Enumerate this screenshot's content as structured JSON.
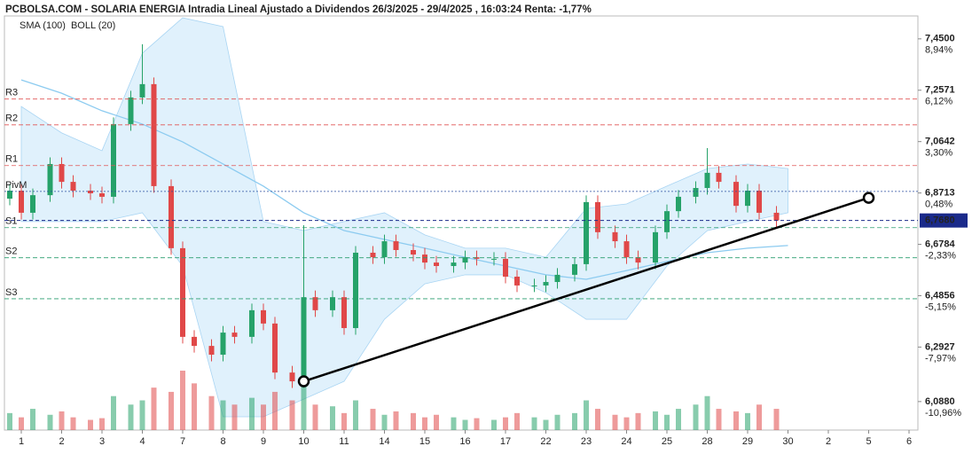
{
  "chart_data": {
    "type": "candlestick",
    "title": "PCBOLSA.COM - SOLARIA ENERGIA Intradia Lineal Ajustado a Dividendos 26/3/2025 - 29/4/2025 , 16:03:24 Renta: -1,77%",
    "legend": [
      {
        "name": "SMA (100)",
        "color": "#8ccbf0"
      },
      {
        "name": "BOLL (20)",
        "color": "#bbbbbb"
      }
    ],
    "categories": [
      "1",
      "2",
      "3",
      "4",
      "7",
      "8",
      "9",
      "10",
      "11",
      "14",
      "15",
      "16",
      "17",
      "22",
      "23",
      "24",
      "25",
      "28",
      "29",
      "30",
      "2",
      "5",
      "6"
    ],
    "ylim": [
      5.981,
      7.536
    ],
    "yticks": [
      {
        "value": 7.45,
        "label": "7,4500"
      },
      {
        "value": 7.2571,
        "label": "7,2571"
      },
      {
        "value": 7.0642,
        "label": "7,0642"
      },
      {
        "value": 6.8713,
        "label": "6,8713"
      },
      {
        "value": 6.6784,
        "label": "6,6784"
      },
      {
        "value": 6.4856,
        "label": "6,4856"
      },
      {
        "value": 6.2927,
        "label": "6,2927"
      },
      {
        "value": 6.088,
        "label": "6,0880"
      }
    ],
    "ytick_returns": [
      {
        "value": 8.94,
        "label": "8,94%"
      },
      {
        "value": 6.12,
        "label": "6,12%"
      },
      {
        "value": 3.3,
        "label": "3,30%"
      },
      {
        "value": 0.48,
        "label": "0,48%"
      },
      {
        "value": -2.33,
        "label": "-2,33%"
      },
      {
        "value": -5.15,
        "label": "-5,15%"
      },
      {
        "value": -7.97,
        "label": "-7,97%"
      },
      {
        "value": -10.96,
        "label": "-10,96%"
      }
    ],
    "current_price": {
      "value": 6.768,
      "label": "6,7680"
    },
    "pivots": [
      {
        "name": "R3",
        "value": 7.224,
        "color": "#e05555"
      },
      {
        "name": "R2",
        "value": 7.127,
        "color": "#e05555"
      },
      {
        "name": "R1",
        "value": 6.974,
        "color": "#e05555"
      },
      {
        "name": "PivM",
        "value": 6.877,
        "color": "#2a4fa0"
      },
      {
        "name": "S1",
        "value": 6.741,
        "color": "#2a9d6f"
      },
      {
        "name": "S2",
        "value": 6.628,
        "color": "#2a9d6f"
      },
      {
        "name": "S3",
        "value": 6.474,
        "color": "#2a9d6f"
      }
    ],
    "up_color": "#26a269",
    "down_color": "#e04848",
    "open": [
      6.85,
      6.88,
      6.797,
      6.863,
      6.98,
      6.913,
      6.88,
      6.87,
      6.857,
      7.13,
      7.23,
      7.28,
      6.897,
      6.664,
      6.331,
      6.297,
      6.264,
      6.347,
      6.331,
      6.431,
      6.381,
      6.197,
      6.164,
      6.48,
      6.431,
      6.48,
      6.364,
      6.647,
      6.63,
      6.69,
      6.657,
      6.64,
      6.61,
      6.597,
      6.61,
      6.63,
      6.624,
      6.624,
      6.557,
      6.524,
      6.524,
      6.537,
      6.564,
      6.604,
      6.837,
      6.724,
      6.69,
      6.63,
      6.61,
      6.724,
      6.803,
      6.857,
      6.89,
      6.947,
      6.913,
      6.823,
      6.88,
      6.797
    ],
    "high": [
      6.905,
      6.905,
      6.888,
      7.005,
      7.005,
      6.938,
      6.905,
      6.895,
      7.155,
      7.255,
      7.43,
      7.305,
      6.922,
      6.689,
      6.356,
      6.322,
      6.372,
      6.372,
      6.456,
      6.456,
      6.406,
      6.222,
      6.75,
      6.505,
      6.505,
      6.505,
      6.672,
      6.672,
      6.715,
      6.715,
      6.682,
      6.665,
      6.635,
      6.635,
      6.655,
      6.655,
      6.649,
      6.649,
      6.582,
      6.549,
      6.562,
      6.589,
      6.629,
      6.862,
      6.862,
      6.749,
      6.715,
      6.655,
      6.749,
      6.828,
      6.882,
      6.915,
      7.04,
      6.972,
      6.938,
      6.905,
      6.905,
      6.822
    ],
    "low": [
      6.825,
      6.772,
      6.772,
      6.838,
      6.888,
      6.855,
      6.845,
      6.832,
      6.832,
      7.105,
      7.205,
      6.872,
      6.639,
      6.306,
      6.272,
      6.239,
      6.239,
      6.306,
      6.306,
      6.356,
      6.172,
      6.139,
      6.139,
      6.406,
      6.406,
      6.339,
      6.339,
      6.605,
      6.605,
      6.632,
      6.615,
      6.585,
      6.572,
      6.572,
      6.585,
      6.599,
      6.599,
      6.532,
      6.499,
      6.499,
      6.499,
      6.512,
      6.539,
      6.579,
      6.699,
      6.665,
      6.605,
      6.585,
      6.585,
      6.699,
      6.778,
      6.832,
      6.865,
      6.888,
      6.798,
      6.798,
      6.772,
      6.743
    ],
    "close": [
      6.88,
      6.797,
      6.863,
      6.98,
      6.913,
      6.88,
      6.87,
      6.857,
      7.13,
      7.23,
      7.28,
      6.897,
      6.664,
      6.331,
      6.297,
      6.264,
      6.347,
      6.331,
      6.431,
      6.381,
      6.197,
      6.164,
      6.48,
      6.431,
      6.48,
      6.364,
      6.647,
      6.63,
      6.69,
      6.657,
      6.64,
      6.61,
      6.597,
      6.61,
      6.63,
      6.624,
      6.624,
      6.557,
      6.524,
      6.524,
      6.537,
      6.564,
      6.604,
      6.837,
      6.724,
      6.69,
      6.63,
      6.61,
      6.724,
      6.803,
      6.857,
      6.89,
      6.947,
      6.913,
      6.823,
      6.88,
      6.797,
      6.768
    ],
    "volume": [
      20,
      15,
      25,
      18,
      22,
      15,
      12,
      14,
      40,
      30,
      35,
      50,
      45,
      70,
      55,
      40,
      35,
      30,
      38,
      30,
      45,
      35,
      55,
      30,
      28,
      20,
      35,
      25,
      18,
      22,
      20,
      15,
      18,
      15,
      12,
      14,
      12,
      15,
      20,
      15,
      12,
      18,
      20,
      35,
      25,
      18,
      15,
      20,
      22,
      18,
      25,
      30,
      40,
      25,
      22,
      20,
      30,
      25
    ],
    "sma": [
      7.296,
      7.246,
      7.18,
      7.13,
      7.063,
      6.98,
      6.897,
      6.797,
      6.73,
      6.697,
      6.664,
      6.63,
      6.597,
      6.564,
      6.547,
      6.58,
      6.614,
      6.647,
      6.664,
      6.674
    ],
    "boll_upper": [
      7.196,
      7.097,
      7.03,
      7.396,
      7.529,
      7.496,
      6.764,
      6.73,
      6.764,
      6.797,
      6.714,
      6.664,
      6.664,
      6.63,
      6.813,
      6.83,
      6.897,
      6.963,
      6.98,
      6.963
    ],
    "boll_lower": [
      6.764,
      6.764,
      6.764,
      6.797,
      6.597,
      6.031,
      6.031,
      6.097,
      6.164,
      6.397,
      6.53,
      6.564,
      6.564,
      6.497,
      6.397,
      6.397,
      6.597,
      6.73,
      6.764,
      6.797
    ],
    "trendline": {
      "x": [
        7,
        21
      ],
      "y": [
        6.164,
        6.853
      ]
    }
  }
}
